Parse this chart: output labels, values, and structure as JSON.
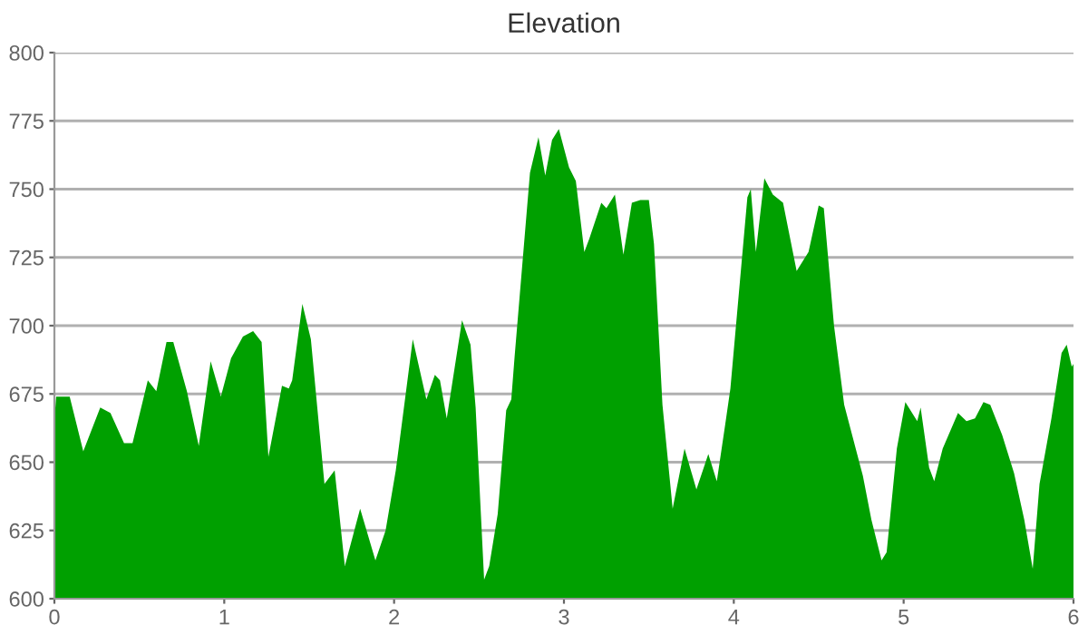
{
  "chart_data": {
    "type": "area",
    "title": "Elevation",
    "series": [
      {
        "color": "#00a000",
        "x": [
          0,
          0.01,
          0.04,
          0.09,
          0.17,
          0.27,
          0.33,
          0.41,
          0.46,
          0.55,
          0.6,
          0.66,
          0.7,
          0.78,
          0.85,
          0.92,
          0.98,
          1.04,
          1.11,
          1.17,
          1.22,
          1.26,
          1.34,
          1.38,
          1.4,
          1.46,
          1.51,
          1.59,
          1.65,
          1.71,
          1.8,
          1.89,
          1.95,
          2.01,
          2.11,
          2.19,
          2.24,
          2.27,
          2.31,
          2.4,
          2.45,
          2.48,
          2.53,
          2.56,
          2.61,
          2.66,
          2.69,
          2.71,
          2.8,
          2.85,
          2.89,
          2.93,
          2.97,
          3.03,
          3.07,
          3.12,
          3.15,
          3.22,
          3.25,
          3.3,
          3.35,
          3.4,
          3.45,
          3.5,
          3.53,
          3.58,
          3.64,
          3.71,
          3.78,
          3.85,
          3.9,
          3.95,
          3.98,
          4.08,
          4.1,
          4.13,
          4.18,
          4.23,
          4.29,
          4.37,
          4.44,
          4.5,
          4.53,
          4.59,
          4.65,
          4.76,
          4.81,
          4.87,
          4.9,
          4.96,
          5.01,
          5.08,
          5.1,
          5.15,
          5.18,
          5.23,
          5.32,
          5.37,
          5.42,
          5.47,
          5.51,
          5.58,
          5.65,
          5.71,
          5.76,
          5.8,
          5.87,
          5.93,
          5.96,
          5.99,
          6.0
        ],
        "values": [
          665,
          674,
          674,
          674,
          654,
          670,
          668,
          657,
          657,
          680,
          676,
          694,
          694,
          676,
          656,
          687,
          674,
          688,
          696,
          698,
          694,
          652,
          678,
          677,
          680,
          708,
          695,
          642,
          647,
          612,
          633,
          614,
          625,
          647,
          695,
          673,
          682,
          680,
          666,
          702,
          693,
          670,
          607,
          612,
          631,
          669,
          673,
          689,
          756,
          769,
          755,
          768,
          772,
          758,
          753,
          727,
          732,
          745,
          743,
          748,
          726,
          745,
          746,
          746,
          730,
          671,
          633,
          655,
          640,
          653,
          643,
          664,
          677,
          747,
          750,
          727,
          754,
          748,
          745,
          720,
          727,
          744,
          743,
          700,
          671,
          645,
          629,
          614,
          617,
          655,
          672,
          665,
          670,
          648,
          643,
          655,
          668,
          665,
          666,
          672,
          671,
          660,
          646,
          629,
          611,
          642,
          666,
          690,
          693,
          685,
          686
        ]
      }
    ],
    "xlim": [
      0,
      6
    ],
    "xticks": [
      0,
      1,
      2,
      3,
      4,
      5,
      6
    ],
    "ylim": [
      600,
      800
    ],
    "yticks": [
      600,
      625,
      650,
      675,
      700,
      725,
      750,
      775,
      800
    ],
    "grid": "y",
    "legend": false
  }
}
